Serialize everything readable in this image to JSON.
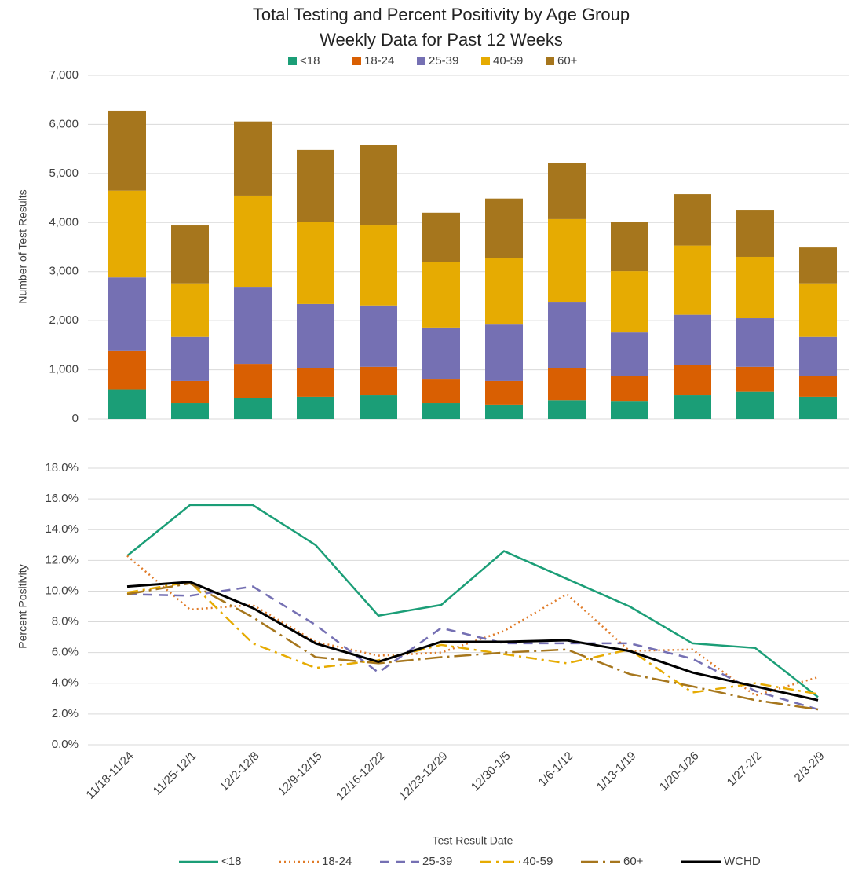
{
  "chart_data": [
    {
      "type": "bar",
      "stacked": true,
      "title": "Total Testing and Percent Positivity by Age Group",
      "subtitle": "Weekly Data for Past 12 Weeks",
      "ylabel": "Number of Test Results",
      "ylim": [
        0,
        7000
      ],
      "yticks": [
        0,
        {
          "value": 1000,
          "label": "1,000"
        },
        {
          "value": 2000,
          "label": "2,000"
        },
        {
          "value": 3000,
          "label": "3,000"
        },
        {
          "value": 4000,
          "label": "4,000"
        },
        {
          "value": 5000,
          "label": "5,000"
        },
        {
          "value": 6000,
          "label": "6,000"
        },
        {
          "value": 7000,
          "label": "7,000"
        }
      ],
      "grid": true,
      "legend": "top",
      "series": [
        {
          "name": "<18",
          "color": "#1b9e77",
          "values": [
            600,
            320,
            420,
            450,
            480,
            320,
            290,
            380,
            350,
            480,
            550,
            450
          ]
        },
        {
          "name": "18-24",
          "color": "#d95f02",
          "values": [
            780,
            450,
            700,
            580,
            580,
            480,
            480,
            650,
            520,
            610,
            510,
            420
          ]
        },
        {
          "name": "25-39",
          "color": "#7570b3",
          "values": [
            1500,
            900,
            1570,
            1310,
            1250,
            1060,
            1150,
            1340,
            890,
            1030,
            990,
            800
          ]
        },
        {
          "name": "40-59",
          "color": "#e6ab02",
          "values": [
            1770,
            1090,
            1860,
            1670,
            1630,
            1330,
            1350,
            1700,
            1250,
            1410,
            1250,
            1090
          ]
        },
        {
          "name": "60+",
          "color": "#a6761d",
          "values": [
            1630,
            1180,
            1510,
            1470,
            1640,
            1010,
            1220,
            1150,
            1000,
            1050,
            960,
            730
          ]
        }
      ]
    },
    {
      "type": "line",
      "ylabel": "Percent Positivity",
      "xlabel": "Test Result Date",
      "categories": [
        "11/18-11/24",
        "11/25-12/1",
        "12/2-12/8",
        "12/9-12/15",
        "12/16-12/22",
        "12/23-12/29",
        "12/30-1/5",
        "1/6-1/12",
        "1/13-1/19",
        "1/20-1/26",
        "1/27-2/2",
        "2/3-2/9"
      ],
      "ylim": [
        0,
        18
      ],
      "yticks": [
        {
          "value": 0,
          "label": "0.0%"
        },
        {
          "value": 2,
          "label": "2.0%"
        },
        {
          "value": 4,
          "label": "4.0%"
        },
        {
          "value": 6,
          "label": "6.0%"
        },
        {
          "value": 8,
          "label": "8.0%"
        },
        {
          "value": 10,
          "label": "10.0%"
        },
        {
          "value": 12,
          "label": "12.0%"
        },
        {
          "value": 14,
          "label": "14.0%"
        },
        {
          "value": 16,
          "label": "16.0%"
        },
        {
          "value": 18,
          "label": "18.0%"
        }
      ],
      "grid": true,
      "legend": "bottom",
      "series": [
        {
          "name": "<18",
          "color": "#1b9e77",
          "dash": "solid",
          "values": [
            12.3,
            15.6,
            15.6,
            13.0,
            8.4,
            9.1,
            12.6,
            10.8,
            9.0,
            6.6,
            6.3,
            3.1
          ]
        },
        {
          "name": "18-24",
          "color": "#e07b28",
          "dash": "dotted",
          "values": [
            12.3,
            8.8,
            9.1,
            6.7,
            5.8,
            6.0,
            7.4,
            9.8,
            6.1,
            6.2,
            3.2,
            4.4
          ]
        },
        {
          "name": "25-39",
          "color": "#7570b3",
          "dash": "dashed",
          "values": [
            9.8,
            9.7,
            10.3,
            7.8,
            4.7,
            7.6,
            6.6,
            6.6,
            6.6,
            5.6,
            3.5,
            2.3
          ]
        },
        {
          "name": "40-59",
          "color": "#e6ab02",
          "dash": "dashdot",
          "values": [
            9.9,
            10.6,
            6.6,
            5.0,
            5.5,
            6.5,
            5.9,
            5.3,
            6.2,
            3.4,
            4.0,
            3.3
          ]
        },
        {
          "name": "60+",
          "color": "#a6761d",
          "dash": "longdashdot",
          "values": [
            9.8,
            10.5,
            8.3,
            5.7,
            5.3,
            5.7,
            6.0,
            6.2,
            4.6,
            3.8,
            2.9,
            2.3
          ]
        },
        {
          "name": "WCHD",
          "color": "#000000",
          "dash": "solid",
          "values": [
            10.3,
            10.6,
            8.9,
            6.6,
            5.4,
            6.7,
            6.7,
            6.8,
            6.1,
            4.7,
            3.8,
            2.9
          ]
        }
      ]
    }
  ]
}
